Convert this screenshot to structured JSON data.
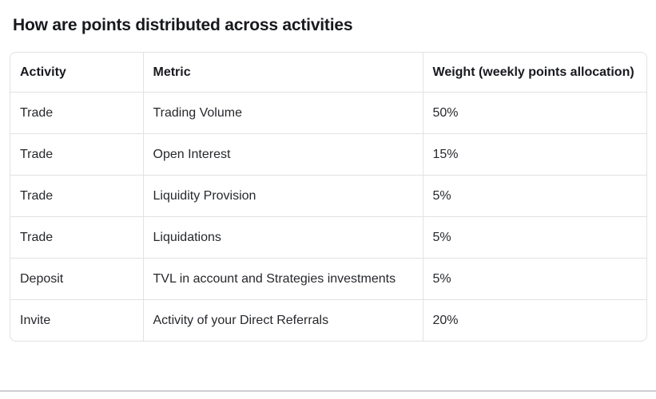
{
  "page": {
    "title": "How are points distributed across activities"
  },
  "table": {
    "headers": [
      "Activity",
      "Metric",
      "Weight (weekly points allocation)"
    ],
    "rows": [
      [
        "Trade",
        "Trading Volume",
        "50%"
      ],
      [
        "Trade",
        "Open Interest",
        "15%"
      ],
      [
        "Trade",
        "Liquidity Provision",
        "5%"
      ],
      [
        "Trade",
        "Liquidations",
        "5%"
      ],
      [
        "Deposit",
        "TVL in account and Strategies investments",
        "5%"
      ],
      [
        "Invite",
        "Activity of your Direct Referrals",
        "20%"
      ]
    ]
  },
  "colors": {
    "background": "#ffffff",
    "title_text": "#17191d",
    "body_text": "#26282c",
    "table_border": "#e2e2e6",
    "bottom_divider": "#cfcfd4"
  }
}
